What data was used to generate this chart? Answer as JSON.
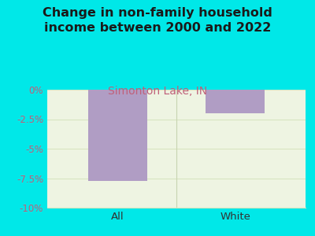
{
  "title": "Change in non-family household\nincome between 2000 and 2022",
  "subtitle": "Simonton Lake, IN",
  "categories": [
    "All",
    "White"
  ],
  "values": [
    -7.7,
    -2.0
  ],
  "bar_color": "#b09dc4",
  "title_fontsize": 11.5,
  "subtitle_fontsize": 10,
  "subtitle_color": "#c0607a",
  "title_color": "#1a1a1a",
  "background_color": "#00e8e8",
  "plot_bg_color": "#eef4e2",
  "ylim": [
    -10,
    0
  ],
  "yticks": [
    0,
    -2.5,
    -5,
    -7.5,
    -10
  ],
  "ytick_labels": [
    "0%",
    "-2.5%",
    "-5%",
    "-7.5%",
    "-10%"
  ],
  "tick_color": "#c0607a",
  "xtick_color": "#333333",
  "grid_color": "#d8e4c0",
  "divider_color": "#c8d4b0"
}
